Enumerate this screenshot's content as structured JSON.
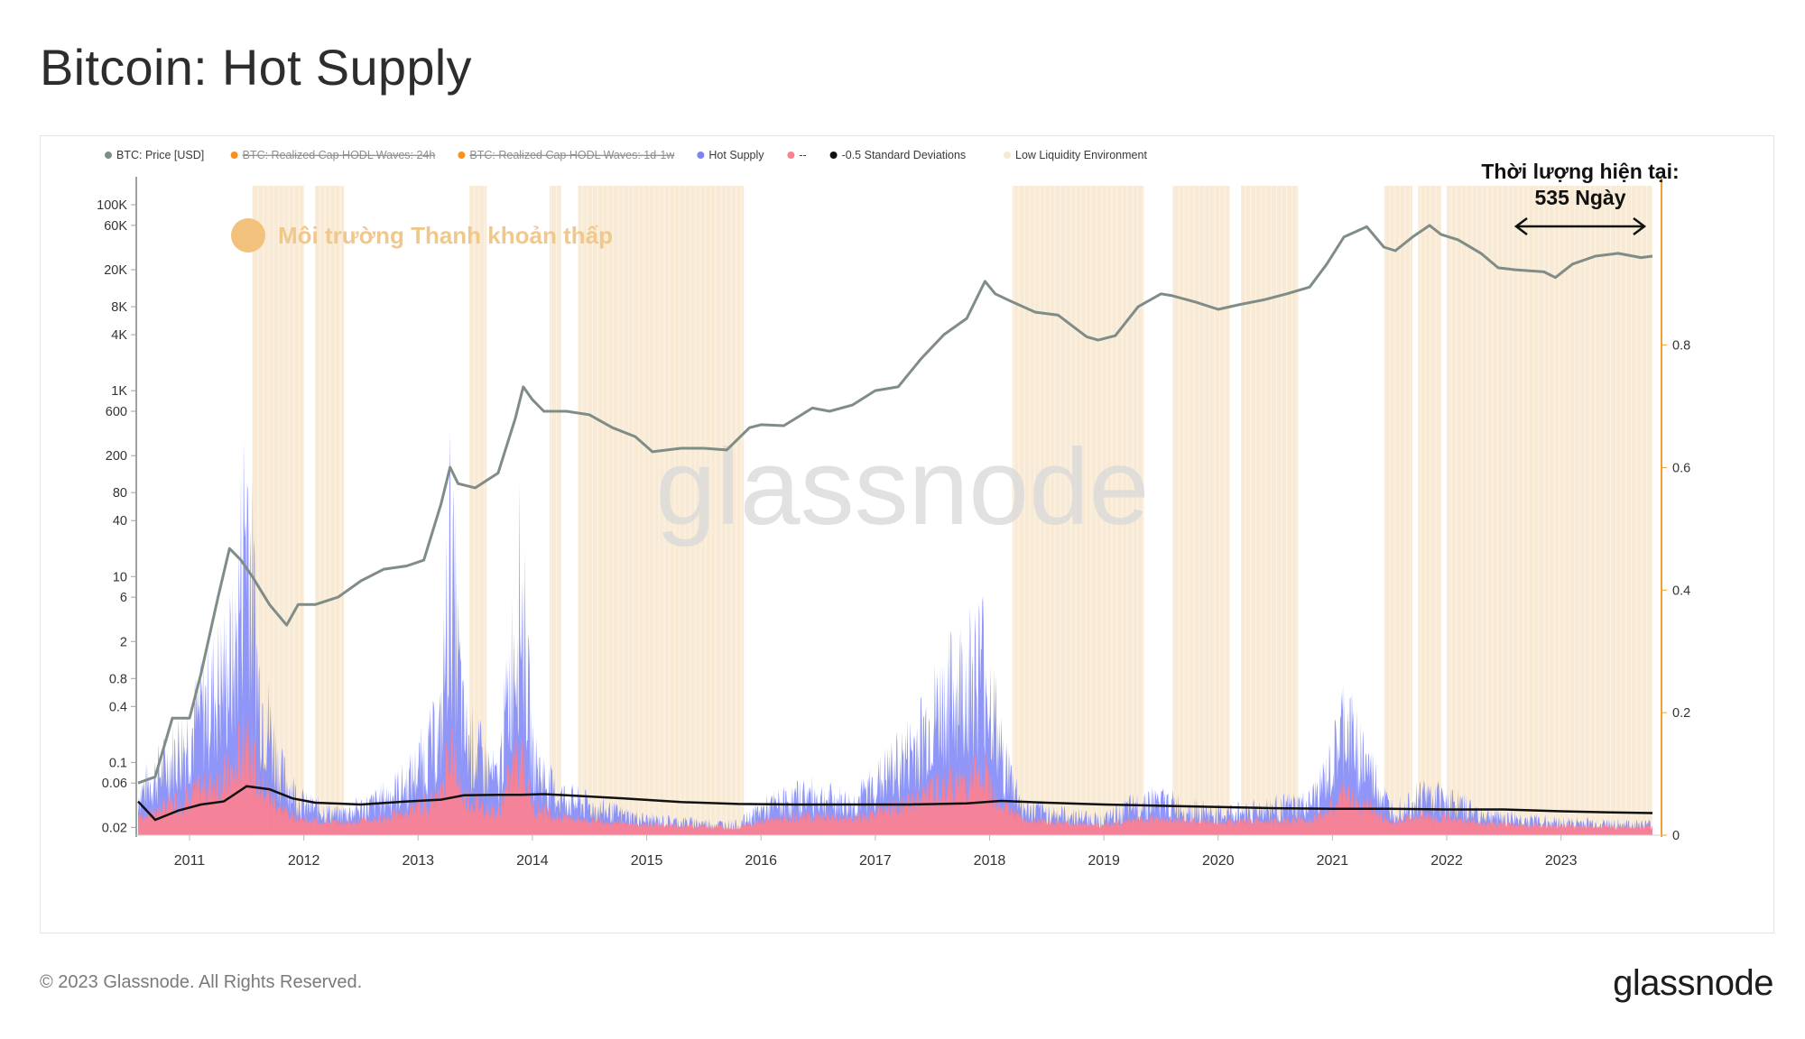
{
  "title": "Bitcoin: Hot Supply",
  "footer": {
    "copyright": "© 2023 Glassnode. All Rights Reserved.",
    "logo": "glassnode"
  },
  "watermark": "glassnode",
  "annotation": {
    "line1": "Thời lượng hiện tại:",
    "line2": "535 Ngày"
  },
  "inline_legend": "Môi trường Thanh khoản thấp",
  "legend": [
    {
      "label": "BTC: Price [USD]",
      "color": "#7f8c87",
      "strike": false
    },
    {
      "label": "BTC: Realized Cap HODL Waves: 24h",
      "color": "#f7931a",
      "strike": true
    },
    {
      "label": "BTC: Realized Cap HODL Waves: 1d-1w",
      "color": "#f7931a",
      "strike": true
    },
    {
      "label": "Hot Supply",
      "color": "#7b84f6",
      "strike": false
    },
    {
      "label": "--",
      "color": "#ff7f8e",
      "strike": false
    },
    {
      "label": "-0.5 Standard Deviations",
      "color": "#111111",
      "strike": false
    },
    {
      "label": "Low Liquidity Environment",
      "color": "#f7e8d1",
      "strike": false
    }
  ],
  "colors": {
    "price": "#7f8c87",
    "hot": "#7b84f6",
    "red": "#ff7f8e",
    "sd": "#111111",
    "low": "#f7e6cc",
    "accent": "#f0a030"
  },
  "chart_data": {
    "type": "area",
    "x_ticks": [
      "2011",
      "2012",
      "2013",
      "2014",
      "2015",
      "2016",
      "2017",
      "2018",
      "2019",
      "2020",
      "2021",
      "2022",
      "2023"
    ],
    "xlim": [
      2010.55,
      2023.8
    ],
    "left_axis": {
      "scale": "log",
      "ticks": [
        {
          "v": 100000,
          "label": "100K"
        },
        {
          "v": 60000,
          "label": "60K"
        },
        {
          "v": 20000,
          "label": "20K"
        },
        {
          "v": 8000,
          "label": "8K"
        },
        {
          "v": 4000,
          "label": "4K"
        },
        {
          "v": 1000,
          "label": "1K"
        },
        {
          "v": 600,
          "label": "600"
        },
        {
          "v": 200,
          "label": "200"
        },
        {
          "v": 80,
          "label": "80"
        },
        {
          "v": 40,
          "label": "40"
        },
        {
          "v": 10,
          "label": "10"
        },
        {
          "v": 6,
          "label": "6"
        },
        {
          "v": 2,
          "label": "2"
        },
        {
          "v": 0.8,
          "label": "0.8"
        },
        {
          "v": 0.4,
          "label": "0.4"
        },
        {
          "v": 0.1,
          "label": "0.1"
        },
        {
          "v": 0.06,
          "label": "0.06"
        },
        {
          "v": 0.02,
          "label": "0.02"
        }
      ]
    },
    "right_axis": {
      "ticks": [
        "0",
        "0.2",
        "0.4",
        "0.6",
        "0.8"
      ],
      "ylim": [
        0,
        1.06
      ]
    },
    "series": [
      {
        "name": "BTC: Price [USD]",
        "x": [
          2010.55,
          2010.7,
          2010.85,
          2011.0,
          2011.1,
          2011.25,
          2011.35,
          2011.45,
          2011.55,
          2011.7,
          2011.85,
          2011.95,
          2012.1,
          2012.3,
          2012.5,
          2012.7,
          2012.9,
          2013.05,
          2013.2,
          2013.28,
          2013.35,
          2013.5,
          2013.7,
          2013.85,
          2013.92,
          2014.0,
          2014.1,
          2014.3,
          2014.5,
          2014.7,
          2014.9,
          2015.05,
          2015.3,
          2015.5,
          2015.7,
          2015.9,
          2016.0,
          2016.2,
          2016.45,
          2016.6,
          2016.8,
          2017.0,
          2017.2,
          2017.4,
          2017.6,
          2017.8,
          2017.96,
          2018.05,
          2018.2,
          2018.4,
          2018.6,
          2018.85,
          2018.95,
          2019.1,
          2019.3,
          2019.5,
          2019.6,
          2019.8,
          2020.0,
          2020.2,
          2020.4,
          2020.6,
          2020.8,
          2020.95,
          2021.1,
          2021.3,
          2021.45,
          2021.55,
          2021.7,
          2021.85,
          2021.95,
          2022.1,
          2022.3,
          2022.45,
          2022.6,
          2022.85,
          2022.95,
          2023.1,
          2023.3,
          2023.5,
          2023.7,
          2023.8
        ],
        "values": [
          0.06,
          0.07,
          0.3,
          0.3,
          0.9,
          6,
          20,
          15,
          10,
          5,
          3,
          5,
          5,
          6,
          9,
          12,
          13,
          15,
          60,
          150,
          100,
          90,
          130,
          500,
          1100,
          800,
          600,
          600,
          550,
          400,
          320,
          220,
          240,
          240,
          230,
          400,
          430,
          420,
          650,
          600,
          700,
          1000,
          1100,
          2200,
          4000,
          6000,
          15000,
          11000,
          9000,
          7000,
          6500,
          3800,
          3500,
          3900,
          8000,
          11000,
          10500,
          9000,
          7500,
          8500,
          9500,
          11000,
          13000,
          23000,
          45000,
          58000,
          35000,
          32000,
          45000,
          60000,
          48000,
          42000,
          30000,
          21000,
          20000,
          19000,
          16500,
          23000,
          28000,
          30000,
          27000,
          28000
        ]
      },
      {
        "name": "-0.5 Standard Deviations",
        "x": [
          2010.55,
          2010.7,
          2010.9,
          2011.1,
          2011.3,
          2011.5,
          2011.7,
          2011.9,
          2012.1,
          2012.5,
          2012.9,
          2013.2,
          2013.4,
          2013.7,
          2013.9,
          2014.1,
          2014.3,
          2014.8,
          2015.3,
          2015.8,
          2016.3,
          2016.8,
          2017.3,
          2017.8,
          2018.1,
          2018.5,
          2019.0,
          2019.5,
          2020.0,
          2020.5,
          2021.0,
          2021.5,
          2022.0,
          2022.5,
          2023.0,
          2023.5,
          2023.8
        ],
        "values": [
          0.055,
          0.025,
          0.04,
          0.05,
          0.055,
          0.08,
          0.075,
          0.06,
          0.053,
          0.05,
          0.055,
          0.058,
          0.065,
          0.066,
          0.066,
          0.067,
          0.065,
          0.06,
          0.054,
          0.051,
          0.05,
          0.05,
          0.05,
          0.052,
          0.056,
          0.053,
          0.05,
          0.048,
          0.046,
          0.044,
          0.043,
          0.043,
          0.042,
          0.042,
          0.039,
          0.037,
          0.036
        ]
      }
    ],
    "low_liquidity_periods": [
      [
        2011.55,
        2012.0
      ],
      [
        2012.1,
        2012.35
      ],
      [
        2013.45,
        2013.6
      ],
      [
        2014.15,
        2014.25
      ],
      [
        2014.4,
        2015.85
      ],
      [
        2018.2,
        2019.35
      ],
      [
        2019.6,
        2020.1
      ],
      [
        2020.2,
        2020.7
      ],
      [
        2021.45,
        2021.7
      ],
      [
        2021.75,
        2021.95
      ],
      [
        2022.0,
        2022.3
      ],
      [
        2022.3,
        2023.8
      ]
    ]
  }
}
